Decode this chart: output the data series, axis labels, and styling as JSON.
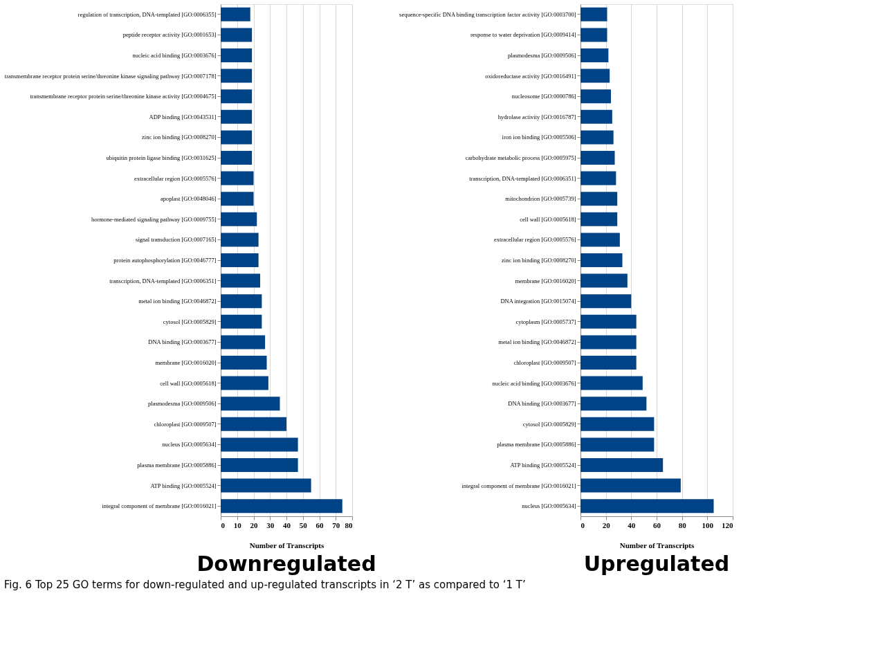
{
  "chart_data": [
    {
      "type": "bar",
      "orientation": "horizontal",
      "title": "Downregulated",
      "xlabel": "Number of Transcripts",
      "categories": [
        "regulation of transcription, DNA-templated [GO:0006355]",
        "peptide receptor activity [GO:0001653]",
        "nucleic acid binding [GO:0003676]",
        "transmembrane receptor protein serine/threonine kinase signaling pathway [GO:0007178]",
        "transmembrane receptor protein serine/threonine kinase activity [GO:0004675]",
        "ADP binding [GO:0043531]",
        "zinc ion binding [GO:0008270]",
        "ubiquitin protein ligase binding [GO:0031625]",
        "extracellular region [GO:0005576]",
        "apoplast [GO:0048046]",
        "hormone-mediated signaling pathway [GO:0009755]",
        "signal transduction [GO:0007165]",
        "protein autophosphorylation [GO:0046777]",
        "transcription, DNA-templated [GO:0006351]",
        "metal ion binding [GO:0046872]",
        "cytosol [GO:0005829]",
        "DNA binding [GO:0003677]",
        "membrane [GO:0016020]",
        "cell wall [GO:0005618]",
        "plasmodesma [GO:0009506]",
        "chloroplast [GO:0009507]",
        "nucleus [GO:0005634]",
        "plasma membrane [GO:0005886]",
        "ATP binding [GO:0005524]",
        "integral component of membrane [GO:0016021]"
      ],
      "values": [
        18,
        19,
        19,
        19,
        19,
        19,
        19,
        19,
        20,
        20,
        22,
        23,
        23,
        24,
        25,
        25,
        27,
        28,
        29,
        36,
        40,
        47,
        47,
        55,
        74
      ],
      "color": "#004386",
      "xlim": [
        0,
        80
      ],
      "xticks": [
        0,
        10,
        20,
        30,
        40,
        50,
        60,
        70,
        80
      ],
      "grid": "x",
      "annotations": [
        "Fig. 6 Top 25 GO terms for down-regulated and up-regulated transcripts in ‘2 T’ as compared to ‘1 T’"
      ]
    },
    {
      "type": "bar",
      "orientation": "horizontal",
      "title": "Upregulated",
      "xlabel": "Number of Transcripts",
      "categories": [
        "sequence-specific DNA binding transcription factor activity [GO:0003700]",
        "response to water deprivation [GO:0009414]",
        "plasmodesma [GO:0009506]",
        "oxidoreductase activity [GO:0016491]",
        "nucleosome [GO:0000786]",
        "hydrolase activity [GO:0016787]",
        "iron ion binding [GO:0005506]",
        "carbohydrate metabolic process [GO:0005975]",
        "transcription, DNA-templated [GO:0006351]",
        "mitochondrion [GO:0005739]",
        "cell wall [GO:0005618]",
        "extracellular region [GO:0005576]",
        "zinc ion binding [GO:0008270]",
        "membrane [GO:0016020]",
        "DNA integration [GO:0015074]",
        "cytoplasm [GO:0005737]",
        "metal ion binding [GO:0046872]",
        "chloroplast [GO:0009507]",
        "nucleic acid binding [GO:0003676]",
        "DNA binding [GO:0003677]",
        "cytosol [GO:0005829]",
        "plasma membrane [GO:0005886]",
        "ATP binding [GO:0005524]",
        "integral component of membrane [GO:0016021]",
        "nucleus [GO:0005634]"
      ],
      "values": [
        21,
        21,
        22,
        23,
        24,
        25,
        26,
        27,
        28,
        29,
        29,
        31,
        33,
        37,
        40,
        44,
        44,
        44,
        49,
        52,
        58,
        58,
        65,
        79,
        105
      ],
      "color": "#004386",
      "xlim": [
        0,
        120
      ],
      "xticks": [
        0,
        20,
        40,
        60,
        80,
        100,
        120
      ],
      "grid": "x"
    }
  ]
}
